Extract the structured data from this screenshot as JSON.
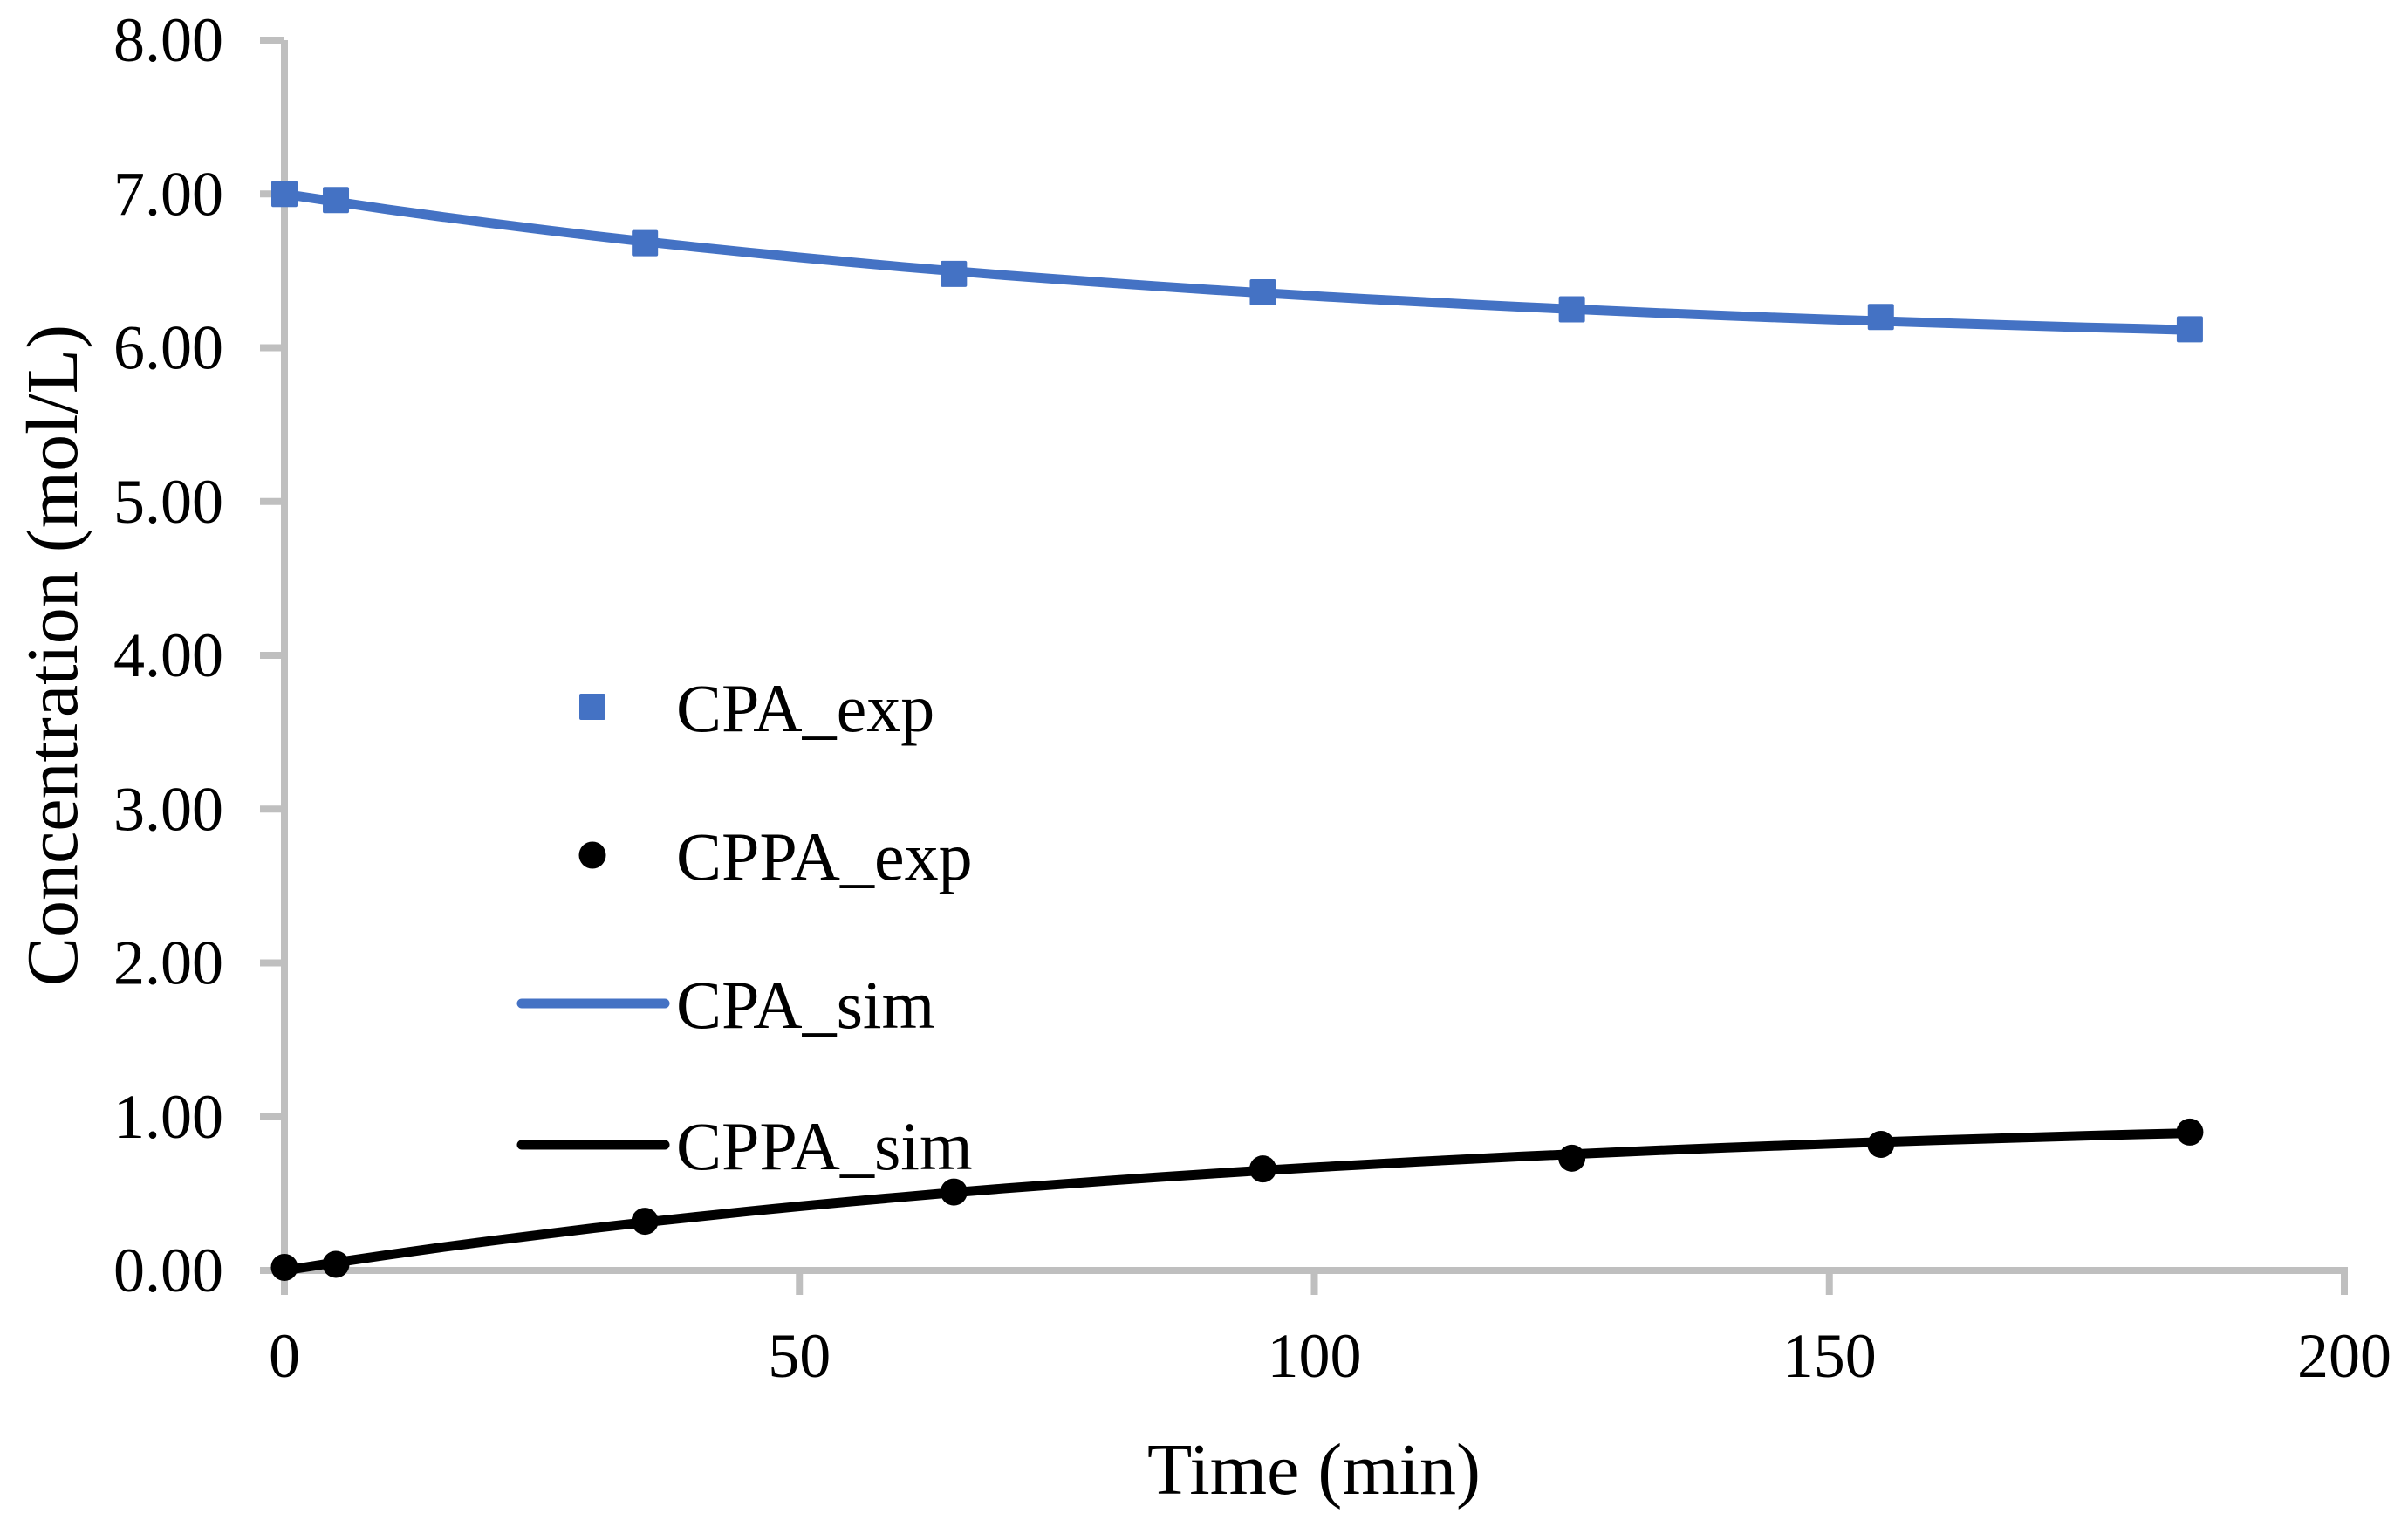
{
  "figure": {
    "background_color": "#ffffff",
    "axis_color": "#bfbfbf",
    "accent_blue": "#4472c4",
    "accent_black": "#000000"
  },
  "chart_data": {
    "type": "scatter",
    "title": "",
    "xlabel": "Time (min)",
    "ylabel": "Concentration (mol/L)",
    "xlim": [
      0,
      200
    ],
    "ylim": [
      0,
      8
    ],
    "x_ticks": [
      0,
      50,
      100,
      150,
      200
    ],
    "x_tick_labels": [
      "0",
      "50",
      "100",
      "150",
      "200"
    ],
    "y_ticks": [
      0,
      1,
      2,
      3,
      4,
      5,
      6,
      7,
      8
    ],
    "y_tick_labels": [
      "0.00",
      "1.00",
      "2.00",
      "3.00",
      "4.00",
      "5.00",
      "6.00",
      "7.00",
      "8.00"
    ],
    "grid": false,
    "legend_position": "inside-left-middle",
    "legend_items": [
      "CPA_exp",
      "CPPA_exp",
      "CPA_sim",
      "CPPA_sim"
    ],
    "series": [
      {
        "name": "CPA_exp",
        "kind": "scatter",
        "marker": "square",
        "color": "#4472c4",
        "x": [
          0,
          5,
          35,
          65,
          95,
          125,
          155,
          185
        ],
        "y": [
          7.0,
          6.96,
          6.68,
          6.48,
          6.36,
          6.25,
          6.2,
          6.12
        ]
      },
      {
        "name": "CPPA_exp",
        "kind": "scatter",
        "marker": "circle",
        "color": "#000000",
        "x": [
          0,
          5,
          35,
          65,
          95,
          125,
          155,
          185
        ],
        "y": [
          0.02,
          0.04,
          0.32,
          0.51,
          0.66,
          0.73,
          0.82,
          0.9
        ]
      },
      {
        "name": "CPA_sim",
        "kind": "line",
        "color": "#4472c4",
        "x": [
          0,
          5,
          10,
          15,
          20,
          25,
          30,
          35,
          40,
          45,
          50,
          55,
          60,
          65,
          70,
          75,
          80,
          85,
          90,
          95,
          100,
          105,
          110,
          115,
          120,
          125,
          130,
          135,
          140,
          145,
          150,
          155,
          160,
          165,
          170,
          175,
          180,
          185
        ],
        "y": [
          7.0,
          6.949,
          6.9,
          6.854,
          6.81,
          6.768,
          6.728,
          6.69,
          6.654,
          6.62,
          6.587,
          6.556,
          6.526,
          6.498,
          6.471,
          6.446,
          6.422,
          6.399,
          6.377,
          6.356,
          6.336,
          6.317,
          6.3,
          6.282,
          6.266,
          6.251,
          6.236,
          6.222,
          6.209,
          6.196,
          6.184,
          6.173,
          6.162,
          6.152,
          6.142,
          6.132,
          6.124,
          6.115
        ]
      },
      {
        "name": "CPPA_sim",
        "kind": "line",
        "color": "#000000",
        "x": [
          0,
          5,
          10,
          15,
          20,
          25,
          30,
          35,
          40,
          45,
          50,
          55,
          60,
          65,
          70,
          75,
          80,
          85,
          90,
          95,
          100,
          105,
          110,
          115,
          120,
          125,
          130,
          135,
          140,
          145,
          150,
          155,
          160,
          165,
          170,
          175,
          180,
          185
        ],
        "y": [
          0.0,
          0.052,
          0.101,
          0.148,
          0.192,
          0.234,
          0.275,
          0.313,
          0.349,
          0.384,
          0.417,
          0.448,
          0.478,
          0.507,
          0.534,
          0.559,
          0.584,
          0.607,
          0.629,
          0.65,
          0.67,
          0.689,
          0.707,
          0.724,
          0.741,
          0.756,
          0.771,
          0.785,
          0.799,
          0.811,
          0.823,
          0.835,
          0.846,
          0.856,
          0.866,
          0.876,
          0.885,
          0.893
        ]
      }
    ]
  }
}
